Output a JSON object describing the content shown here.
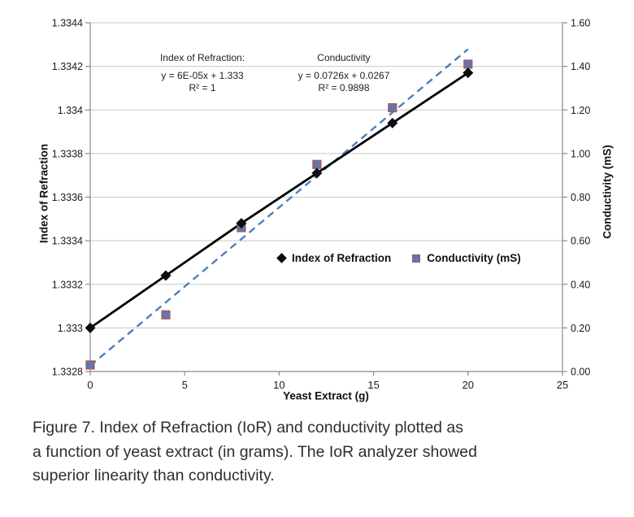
{
  "chart_data": {
    "type": "line",
    "xlabel": "Yeast Extract (g)",
    "ylabel_left": "Index of Refraction",
    "ylabel_right": "Conductivity (mS)",
    "xlim": [
      0,
      25
    ],
    "x_ticks": [
      "0",
      "5",
      "10",
      "15",
      "20",
      "25"
    ],
    "grid": "horizontal",
    "left_axis": {
      "min": 1.3328,
      "max": 1.3344,
      "ticks": [
        "1.3328",
        "1.333",
        "1.3332",
        "1.3334",
        "1.3336",
        "1.3338",
        "1.334",
        "1.3342",
        "1.3344"
      ]
    },
    "right_axis": {
      "min": 0.0,
      "max": 1.6,
      "ticks": [
        "0.00",
        "0.20",
        "0.40",
        "0.60",
        "0.80",
        "1.00",
        "1.20",
        "1.40",
        "1.60"
      ]
    },
    "series": [
      {
        "name": "Index of Refraction",
        "axis": "left",
        "marker": "diamond",
        "marker_color": "#0b0d12",
        "line_color": "#000000",
        "line_style": "solid",
        "x": [
          0,
          4,
          8,
          12,
          16,
          20
        ],
        "y": [
          1.333,
          1.33324,
          1.33348,
          1.33371,
          1.33394,
          1.33417
        ]
      },
      {
        "name": "Conductivity (mS)",
        "axis": "right",
        "marker": "square",
        "marker_color": "#5c77b2",
        "marker_border": "#b4534f",
        "line_style": "none",
        "x": [
          0,
          4,
          8,
          12,
          16,
          20
        ],
        "y": [
          0.03,
          0.26,
          0.66,
          0.95,
          1.21,
          1.41
        ]
      }
    ],
    "trendline": {
      "applies_to": "Conductivity (mS)",
      "slope": 0.0726,
      "intercept": 0.0267,
      "x_start": 0,
      "x_end": 20,
      "color": "#4a7fbe",
      "style": "dashed"
    },
    "annotations": [
      {
        "title": "Index of Refraction:",
        "line1": "y = 6E-05x + 1.333",
        "line2": "R² = 1"
      },
      {
        "title": "Conductivity",
        "line1": "y = 0.0726x + 0.0267",
        "line2": "R² = 0.9898"
      }
    ],
    "legend": [
      {
        "label": "Index of Refraction",
        "marker": "diamond"
      },
      {
        "label": "Conductivity (mS)",
        "marker": "square"
      }
    ],
    "colors": {
      "gridline": "#c8c8c8",
      "axis": "#8a8a8a",
      "tick_label": "#1a1a1a"
    }
  },
  "caption": {
    "lines": [
      "Figure 7. Index of Refraction (IoR) and conductivity plotted as",
      "a function of yeast extract (in grams). The IoR analyzer showed",
      "superior linearity than conductivity."
    ]
  }
}
